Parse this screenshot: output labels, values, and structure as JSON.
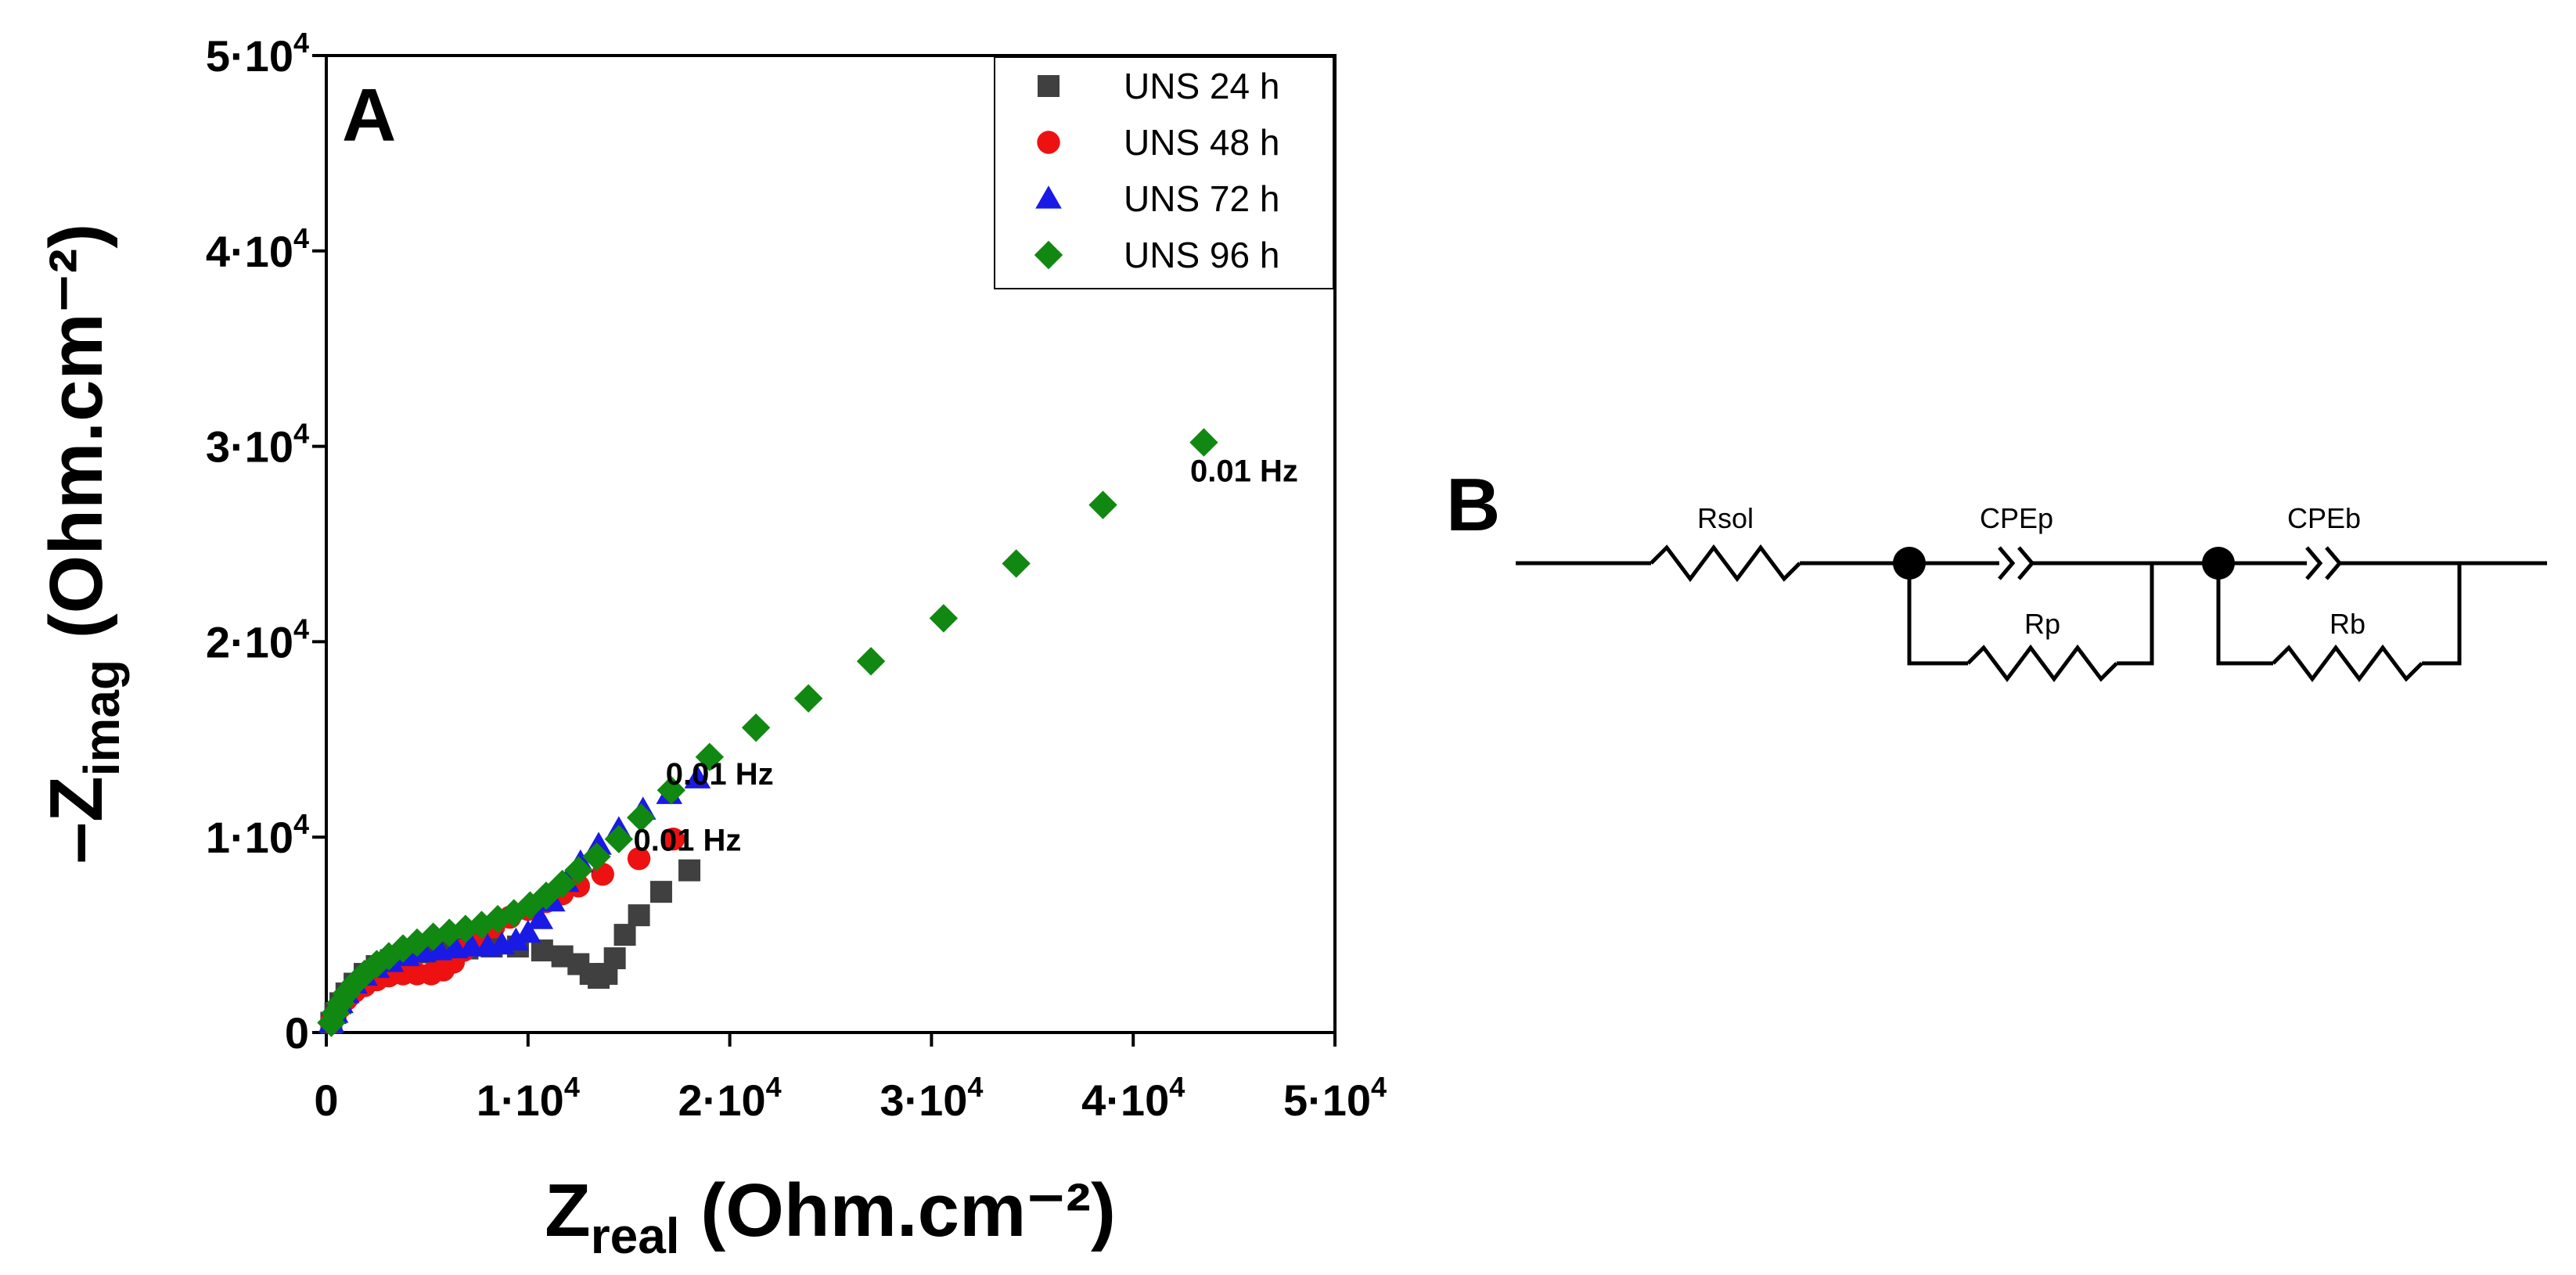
{
  "chart_data": {
    "type": "scatter",
    "panel_label": "A",
    "xlabel": "Z",
    "xlabel_sub": "real",
    "xlabel_units": " (Ohm.cm⁻²)",
    "ylabel_prefix": "–Z",
    "ylabel_sub": "imag",
    "ylabel_units": " (Ohm.cm⁻²)",
    "xlim": [
      0,
      50000
    ],
    "ylim": [
      0,
      50000
    ],
    "x_ticks": [
      0,
      10000,
      20000,
      30000,
      40000,
      50000
    ],
    "x_tick_labels": [
      "0",
      "1·10",
      "2·10",
      "3·10",
      "4·10",
      "5·10"
    ],
    "y_ticks": [
      0,
      10000,
      20000,
      30000,
      40000,
      50000
    ],
    "y_tick_labels": [
      "0",
      "1·10",
      "2·10",
      "3·10",
      "4·10",
      "5·10"
    ],
    "tick_exponent": "4",
    "grid": false,
    "legend_position": "top-right",
    "series": [
      {
        "name": "UNS 24 h",
        "marker": "square",
        "color": "#404040",
        "x": [
          250,
          450,
          700,
          1000,
          1400,
          1900,
          2500,
          3200,
          4000,
          4900,
          5900,
          7000,
          8200,
          9500,
          10700,
          11700,
          12500,
          13100,
          13500,
          13900,
          14300,
          14800,
          15500,
          16600,
          18000
        ],
        "y": [
          500,
          1000,
          1500,
          2000,
          2500,
          3000,
          3400,
          3700,
          3900,
          4100,
          4200,
          4300,
          4400,
          4400,
          4200,
          3900,
          3500,
          3000,
          2800,
          3000,
          3800,
          5000,
          6000,
          7200,
          8300
        ]
      },
      {
        "name": "UNS 48 h",
        "marker": "circle",
        "color": "#ee1111",
        "x": [
          250,
          450,
          700,
          1000,
          1400,
          1900,
          2500,
          3100,
          3800,
          4500,
          5200,
          5800,
          6300,
          6800,
          7500,
          8300,
          9100,
          10000,
          10900,
          11700,
          12500,
          13700,
          15500,
          17200
        ],
        "y": [
          500,
          900,
          1300,
          1700,
          2100,
          2400,
          2700,
          2900,
          3000,
          3000,
          3000,
          3200,
          3600,
          4200,
          4800,
          5400,
          5900,
          6300,
          6700,
          7100,
          7500,
          8100,
          8900,
          9900
        ]
      },
      {
        "name": "UNS 72 h",
        "marker": "triangle",
        "color": "#1a1ae6",
        "x": [
          250,
          450,
          700,
          1000,
          1400,
          1900,
          2500,
          3200,
          4000,
          4800,
          5600,
          6400,
          7200,
          8000,
          8700,
          9400,
          10000,
          10600,
          11200,
          11900,
          12600,
          13500,
          14500,
          15700,
          17000,
          18400
        ],
        "y": [
          500,
          1000,
          1500,
          2000,
          2500,
          2900,
          3300,
          3600,
          3900,
          4100,
          4200,
          4300,
          4400,
          4400,
          4500,
          4700,
          5100,
          5800,
          6700,
          7700,
          8700,
          9600,
          10400,
          11400,
          12200,
          13000
        ]
      },
      {
        "name": "UNS 96 h",
        "marker": "diamond",
        "color": "#118811",
        "x": [
          250,
          450,
          700,
          1000,
          1400,
          1900,
          2500,
          3100,
          3800,
          4500,
          5300,
          6100,
          6900,
          7700,
          8500,
          9300,
          10100,
          10900,
          11700,
          12500,
          13400,
          14500,
          15600,
          17100,
          19000,
          21300,
          23900,
          27000,
          30600,
          34200,
          38500,
          43500
        ],
        "y": [
          500,
          1000,
          1500,
          2000,
          2500,
          3000,
          3500,
          3900,
          4300,
          4600,
          4900,
          5100,
          5300,
          5500,
          5800,
          6100,
          6500,
          7000,
          7600,
          8300,
          9000,
          9900,
          11000,
          12400,
          14100,
          15600,
          17100,
          19000,
          21200,
          24000,
          27000,
          30200
        ]
      }
    ],
    "annotations": [
      {
        "text": "0.01 Hz",
        "x": 45500,
        "y": 28200
      },
      {
        "text": "0.01 Hz",
        "x": 19500,
        "y": 12700
      },
      {
        "text": "0.01 Hz",
        "x": 17900,
        "y": 9300
      }
    ]
  },
  "circuit": {
    "panel_label": "B",
    "elements": {
      "rsol": "Rsol",
      "cpep": "CPEp",
      "rp": "Rp",
      "cpeb": "CPEb",
      "rb": "Rb"
    }
  }
}
